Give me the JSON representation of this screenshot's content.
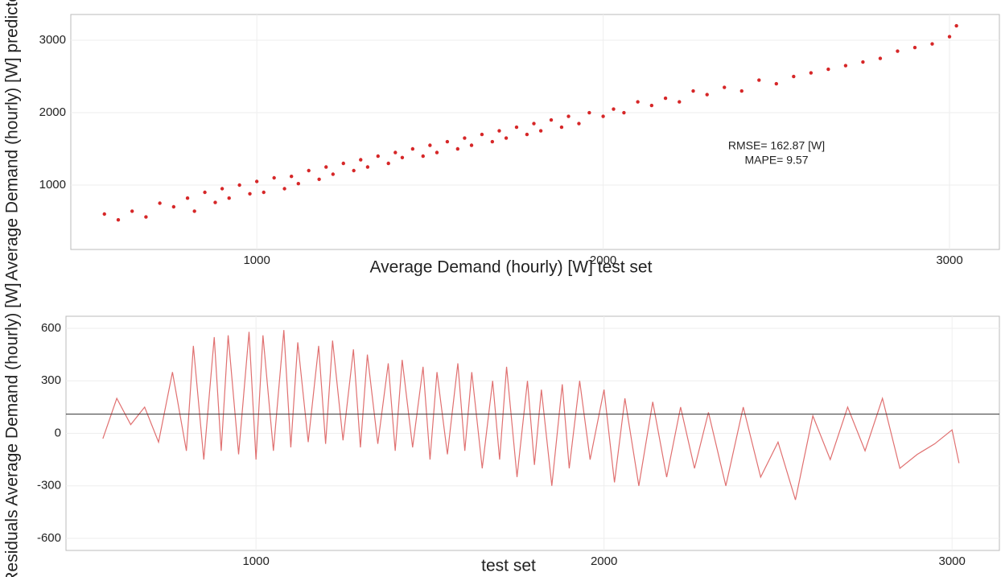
{
  "chart_data": [
    {
      "type": "scatter",
      "x_label": "Average Demand (hourly) [W] test set",
      "y_label": "Average Demand (hourly) [W] predicted",
      "annotations": [
        "RMSE= 162.87 [W]",
        "MAPE= 9.57"
      ],
      "color": "#d62728",
      "xlim": [
        463,
        3144
      ],
      "ylim": [
        111,
        3356
      ],
      "xticks": [
        1000,
        2000,
        3000
      ],
      "yticks": [
        1000,
        2000,
        3000
      ],
      "grid": true,
      "x": [
        560,
        600,
        640,
        680,
        720,
        760,
        800,
        820,
        850,
        880,
        900,
        920,
        950,
        980,
        1000,
        1020,
        1050,
        1080,
        1100,
        1120,
        1150,
        1180,
        1200,
        1220,
        1250,
        1280,
        1300,
        1320,
        1350,
        1380,
        1400,
        1420,
        1450,
        1480,
        1500,
        1520,
        1550,
        1580,
        1600,
        1620,
        1650,
        1680,
        1700,
        1720,
        1750,
        1780,
        1800,
        1820,
        1850,
        1880,
        1900,
        1930,
        1960,
        2000,
        2030,
        2060,
        2100,
        2140,
        2180,
        2220,
        2260,
        2300,
        2350,
        2400,
        2450,
        2500,
        2550,
        2600,
        2650,
        2700,
        2750,
        2800,
        2850,
        2900,
        2950,
        3000,
        3020
      ],
      "values": [
        600,
        520,
        640,
        560,
        750,
        700,
        820,
        640,
        900,
        760,
        950,
        820,
        1000,
        880,
        1050,
        900,
        1100,
        950,
        1120,
        1020,
        1200,
        1080,
        1250,
        1150,
        1300,
        1200,
        1350,
        1250,
        1400,
        1300,
        1450,
        1380,
        1500,
        1400,
        1550,
        1450,
        1600,
        1500,
        1650,
        1550,
        1700,
        1600,
        1750,
        1650,
        1800,
        1700,
        1850,
        1750,
        1900,
        1800,
        1950,
        1850,
        2000,
        1950,
        2050,
        2000,
        2150,
        2100,
        2200,
        2150,
        2300,
        2250,
        2350,
        2300,
        2450,
        2400,
        2500,
        2550,
        2600,
        2650,
        2700,
        2750,
        2850,
        2900,
        2950,
        3050,
        3200
      ]
    },
    {
      "type": "line",
      "x_label": "test set",
      "y_label": "Residuals Average Demand (hourly) [W]",
      "color": "#e07070",
      "hline": 110,
      "xlim": [
        454,
        3136
      ],
      "ylim": [
        -669,
        669
      ],
      "xticks": [
        1000,
        2000,
        3000
      ],
      "yticks": [
        -600,
        -300,
        0,
        300,
        600
      ],
      "grid": true,
      "x": [
        560,
        600,
        640,
        680,
        720,
        760,
        800,
        820,
        850,
        880,
        900,
        920,
        950,
        980,
        1000,
        1020,
        1050,
        1080,
        1100,
        1120,
        1150,
        1180,
        1200,
        1220,
        1250,
        1280,
        1300,
        1320,
        1350,
        1380,
        1400,
        1420,
        1450,
        1480,
        1500,
        1520,
        1550,
        1580,
        1600,
        1620,
        1650,
        1680,
        1700,
        1720,
        1750,
        1780,
        1800,
        1820,
        1850,
        1880,
        1900,
        1930,
        1960,
        2000,
        2030,
        2060,
        2100,
        2140,
        2180,
        2220,
        2260,
        2300,
        2350,
        2400,
        2450,
        2500,
        2550,
        2600,
        2650,
        2700,
        2750,
        2800,
        2850,
        2900,
        2950,
        3000,
        3020
      ],
      "values": [
        -30,
        200,
        50,
        150,
        -50,
        350,
        -100,
        500,
        -150,
        550,
        -100,
        560,
        -120,
        580,
        -150,
        560,
        -100,
        590,
        -80,
        520,
        -50,
        500,
        -60,
        530,
        -40,
        480,
        -80,
        450,
        -60,
        400,
        -100,
        420,
        -80,
        380,
        -150,
        350,
        -120,
        400,
        -100,
        350,
        -200,
        300,
        -150,
        380,
        -250,
        300,
        -180,
        250,
        -300,
        280,
        -200,
        300,
        -150,
        250,
        -280,
        200,
        -300,
        180,
        -250,
        150,
        -200,
        120,
        -300,
        150,
        -250,
        -50,
        -380,
        100,
        -150,
        150,
        -100,
        200,
        -200,
        -120,
        -60,
        20,
        -170
      ]
    }
  ]
}
